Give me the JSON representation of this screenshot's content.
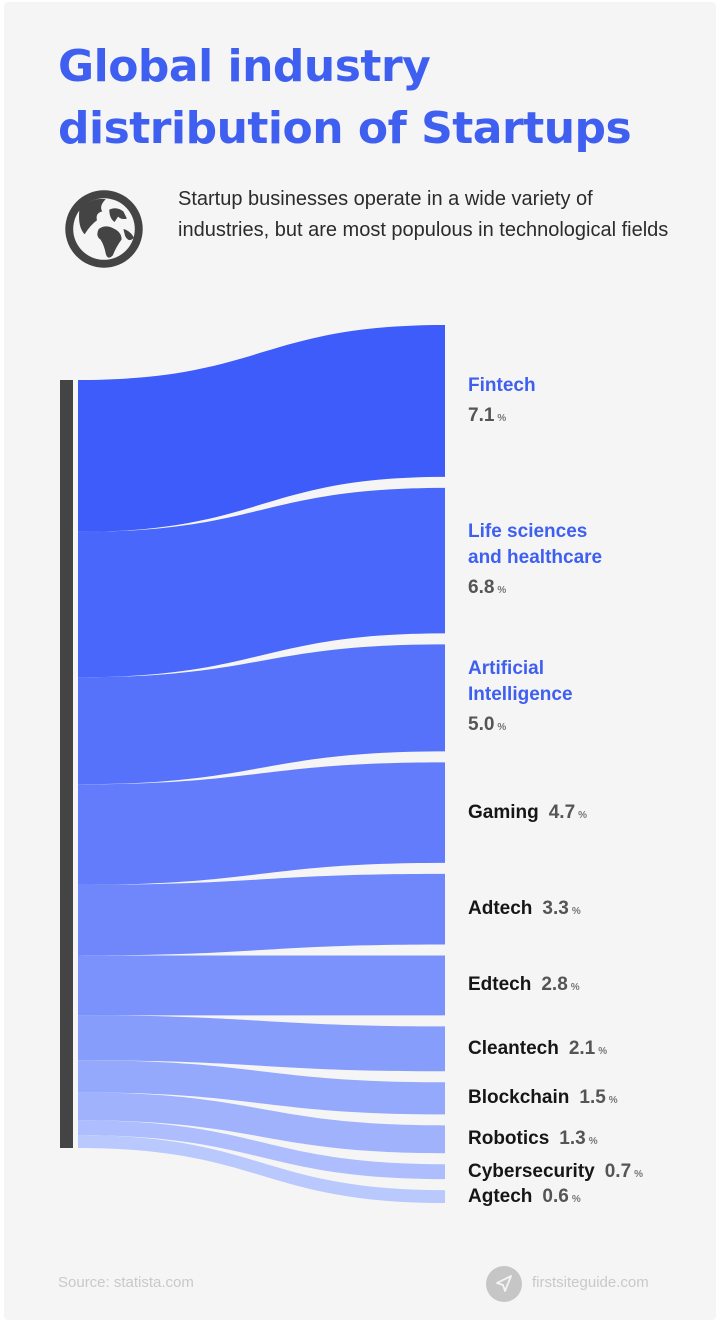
{
  "header": {
    "title_line1": "Global industry",
    "title_line2": "distribution of Startups",
    "subtitle": "Startup businesses operate in a wide variety of industries, but are most populous in technological fields",
    "icon": "globe-icon"
  },
  "footer": {
    "source": "Source: statista.com",
    "site": "firstsiteguide.com",
    "logo_icon": "paper-plane-icon"
  },
  "colors": {
    "title": "#3f5ff0",
    "bar": "#444444",
    "band_start": "#3d5cfa",
    "band_end": "#b9c8fd"
  },
  "items": [
    {
      "name": "Fintech",
      "line1": "Fintech",
      "line2": "",
      "value": "7.1",
      "unit": "%",
      "highlight": true
    },
    {
      "name": "Life sciences and healthcare",
      "line1": "Life sciences",
      "line2": "and healthcare",
      "value": "6.8",
      "unit": "%",
      "highlight": true
    },
    {
      "name": "Artificial Intelligence",
      "line1": "Artificial",
      "line2": "Intelligence",
      "value": "5.0",
      "unit": "%",
      "highlight": true
    },
    {
      "name": "Gaming",
      "line1": "Gaming",
      "line2": "",
      "value": "4.7",
      "unit": "%",
      "highlight": false
    },
    {
      "name": "Adtech",
      "line1": "Adtech",
      "line2": "",
      "value": "3.3",
      "unit": "%",
      "highlight": false
    },
    {
      "name": "Edtech",
      "line1": "Edtech",
      "line2": "",
      "value": "2.8",
      "unit": "%",
      "highlight": false
    },
    {
      "name": "Cleantech",
      "line1": "Cleantech",
      "line2": "",
      "value": "2.1",
      "unit": "%",
      "highlight": false
    },
    {
      "name": "Blockchain",
      "line1": "Blockchain",
      "line2": "",
      "value": "1.5",
      "unit": "%",
      "highlight": false
    },
    {
      "name": "Robotics",
      "line1": "Robotics",
      "line2": "",
      "value": "1.3",
      "unit": "%",
      "highlight": false
    },
    {
      "name": "Cybersecurity",
      "line1": "Cybersecurity",
      "line2": "",
      "value": "0.7",
      "unit": "%",
      "highlight": false
    },
    {
      "name": "Agtech",
      "line1": "Agtech",
      "line2": "",
      "value": "0.6",
      "unit": "%",
      "highlight": false
    }
  ],
  "chart_data": {
    "type": "sankey",
    "title": "Global industry distribution of Startups",
    "subtitle": "Startup businesses operate in a wide variety of industries, but are most populous in technological fields",
    "categories": [
      "Fintech",
      "Life sciences and healthcare",
      "Artificial Intelligence",
      "Gaming",
      "Adtech",
      "Edtech",
      "Cleantech",
      "Blockchain",
      "Robotics",
      "Cybersecurity",
      "Agtech"
    ],
    "values": [
      7.1,
      6.8,
      5.0,
      4.7,
      3.3,
      2.8,
      2.1,
      1.5,
      1.3,
      0.7,
      0.6
    ],
    "unit": "%",
    "source": "statista.com",
    "xlabel": "",
    "ylabel": "",
    "legend": "none",
    "grid": false
  }
}
